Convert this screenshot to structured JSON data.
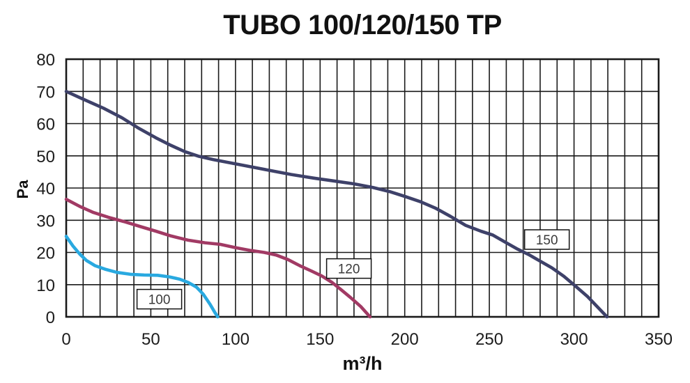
{
  "chart_data": {
    "type": "line",
    "title": "TUBO 100/120/150 TP",
    "xlabel": "m³/h",
    "ylabel": "Pa",
    "xlim": [
      0,
      350
    ],
    "ylim": [
      0,
      80
    ],
    "grid": true,
    "grid_x_step": 10,
    "grid_y_step": 10,
    "xticks": [
      0,
      50,
      100,
      150,
      200,
      250,
      300,
      350
    ],
    "yticks": [
      0,
      10,
      20,
      30,
      40,
      50,
      60,
      70,
      80
    ],
    "colors": {
      "grid": "#1a1a1a",
      "tick_text": "#1c1c1c",
      "label_box_border": "#111111",
      "label_box_fill": "#ffffff"
    },
    "legend_position": "on-curve-boxes",
    "series": [
      {
        "name": "100",
        "color": "#29a9e0",
        "label_pos": [
          55,
          5.5
        ],
        "points": [
          [
            0,
            25
          ],
          [
            4,
            22
          ],
          [
            8,
            19.5
          ],
          [
            12,
            17.5
          ],
          [
            17,
            15.9
          ],
          [
            23,
            14.8
          ],
          [
            30,
            13.8
          ],
          [
            38,
            13.2
          ],
          [
            46,
            13.0
          ],
          [
            54,
            12.9
          ],
          [
            61,
            12.4
          ],
          [
            67,
            11.7
          ],
          [
            72,
            10.7
          ],
          [
            77,
            9.2
          ],
          [
            81,
            7.0
          ],
          [
            85,
            3.9
          ],
          [
            88,
            1.2
          ],
          [
            89.5,
            0
          ]
        ]
      },
      {
        "name": "120",
        "color": "#a13a64",
        "label_pos": [
          167,
          15
        ],
        "points": [
          [
            0,
            36.5
          ],
          [
            8,
            34.3
          ],
          [
            16,
            32.4
          ],
          [
            25,
            30.9
          ],
          [
            34,
            29.6
          ],
          [
            44,
            28.0
          ],
          [
            53,
            26.6
          ],
          [
            62,
            25.1
          ],
          [
            72,
            23.8
          ],
          [
            82,
            23.0
          ],
          [
            91,
            22.5
          ],
          [
            100,
            21.5
          ],
          [
            109,
            20.6
          ],
          [
            117,
            20.0
          ],
          [
            124,
            19.2
          ],
          [
            131,
            17.8
          ],
          [
            138,
            15.9
          ],
          [
            145,
            14.2
          ],
          [
            151,
            12.7
          ],
          [
            157,
            10.7
          ],
          [
            162,
            8.6
          ],
          [
            168,
            6.0
          ],
          [
            174,
            3.2
          ],
          [
            179.5,
            0
          ]
        ]
      },
      {
        "name": "150",
        "color": "#3e4169",
        "label_pos": [
          284,
          24
        ],
        "points": [
          [
            0,
            70
          ],
          [
            10,
            67.6
          ],
          [
            22,
            64.8
          ],
          [
            33,
            61.8
          ],
          [
            43,
            58.5
          ],
          [
            53,
            55.6
          ],
          [
            62,
            53.2
          ],
          [
            70,
            51.3
          ],
          [
            78,
            49.9
          ],
          [
            87,
            48.8
          ],
          [
            97,
            47.8
          ],
          [
            108,
            46.7
          ],
          [
            120,
            45.5
          ],
          [
            133,
            44.2
          ],
          [
            146,
            43.1
          ],
          [
            158,
            42.2
          ],
          [
            170,
            41.3
          ],
          [
            181,
            40.2
          ],
          [
            191,
            38.9
          ],
          [
            200,
            37.4
          ],
          [
            209,
            35.8
          ],
          [
            218,
            33.8
          ],
          [
            227,
            31.2
          ],
          [
            236,
            28.4
          ],
          [
            245,
            26.6
          ],
          [
            252,
            25.4
          ],
          [
            259,
            23.3
          ],
          [
            266,
            21.2
          ],
          [
            273,
            19.4
          ],
          [
            280,
            17.3
          ],
          [
            287,
            15.2
          ],
          [
            294,
            12.6
          ],
          [
            301,
            9.5
          ],
          [
            308,
            6.3
          ],
          [
            314,
            3.0
          ],
          [
            319.5,
            0
          ]
        ]
      }
    ]
  }
}
